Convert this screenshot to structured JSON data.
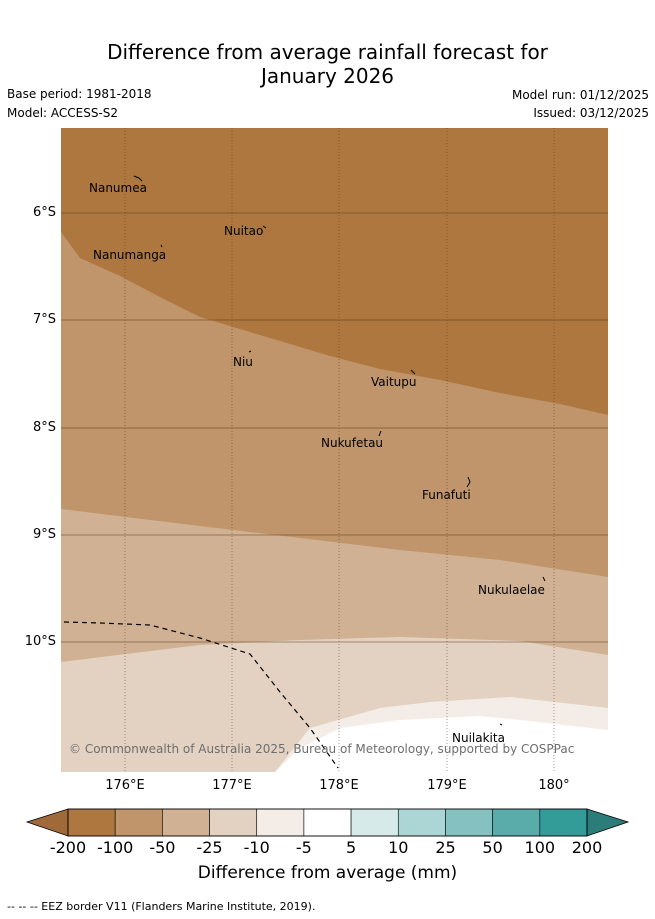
{
  "title": {
    "line1": "Difference from average rainfall forecast for",
    "line2": "January 2026"
  },
  "meta": {
    "base_period": "Base period: 1981-2018",
    "model": "Model: ACCESS-S2",
    "model_run": "Model run: 01/12/2025",
    "issued": "Issued: 03/12/2025"
  },
  "axes": {
    "lat_labels": [
      "6°S",
      "7°S",
      "8°S",
      "9°S",
      "10°S"
    ],
    "lon_labels": [
      "176°E",
      "177°E",
      "178°E",
      "179°E",
      "180°"
    ]
  },
  "places": [
    {
      "name": "Nanumea"
    },
    {
      "name": "Nuitao"
    },
    {
      "name": "Nanumanga"
    },
    {
      "name": "Niu"
    },
    {
      "name": "Vaitupu"
    },
    {
      "name": "Nukufetau"
    },
    {
      "name": "Funafuti"
    },
    {
      "name": "Nukulaelae"
    },
    {
      "name": "Nuilakita"
    }
  ],
  "copyright": "© Commonwealth of Australia 2025, Bureau of Meteorology, supported by COSPPac",
  "colorbar": {
    "title": "Difference from average (mm)",
    "ticks": [
      "-200",
      "-100",
      "-50",
      "-25",
      "-10",
      "-5",
      "5",
      "10",
      "25",
      "50",
      "100",
      "200"
    ],
    "colors": [
      "#a0693a",
      "#ad773f",
      "#c0956b",
      "#d1b193",
      "#e3d2c2",
      "#f4ede7",
      "#ffffff",
      "#d6ebe9",
      "#acd6d5",
      "#85c1c1",
      "#5aacaa",
      "#339b98",
      "#2c7c7a"
    ]
  },
  "legend_note": "--  --  -- EEZ border V11 (Flanders Marine Institute, 2019)."
}
